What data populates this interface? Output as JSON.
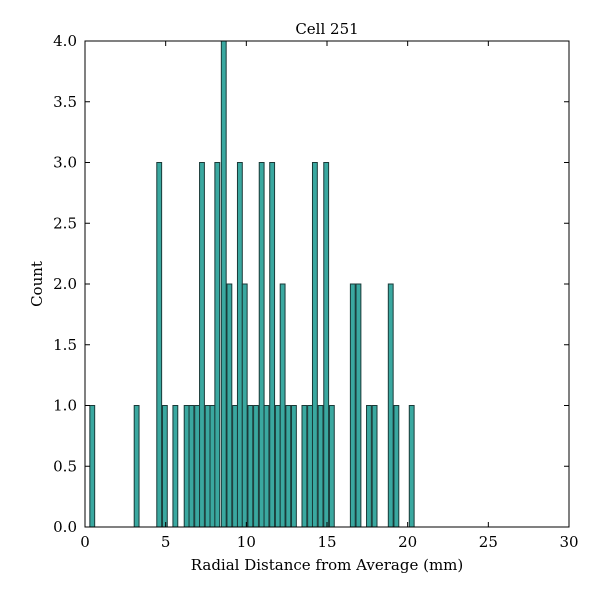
{
  "chart_data": {
    "type": "bar",
    "title": "Cell 251",
    "xlabel": "Radial Distance from Average (mm)",
    "ylabel": "Count",
    "xlim": [
      0,
      30
    ],
    "ylim": [
      0,
      4.0
    ],
    "xticks": [
      "0",
      "5",
      "10",
      "15",
      "20",
      "25",
      "30"
    ],
    "yticks": [
      "0.0",
      "0.5",
      "1.0",
      "1.5",
      "2.0",
      "2.5",
      "3.0",
      "3.5",
      "4.0"
    ],
    "grid": false,
    "legend": "none",
    "bar_color": "#3aa8a0",
    "bin_width": 0.3,
    "bars": [
      {
        "x": 0.45,
        "count": 1
      },
      {
        "x": 3.2,
        "count": 1
      },
      {
        "x": 4.6,
        "count": 3
      },
      {
        "x": 4.95,
        "count": 1
      },
      {
        "x": 5.6,
        "count": 1
      },
      {
        "x": 6.3,
        "count": 1
      },
      {
        "x": 6.6,
        "count": 1
      },
      {
        "x": 6.95,
        "count": 1
      },
      {
        "x": 7.25,
        "count": 3
      },
      {
        "x": 7.6,
        "count": 1
      },
      {
        "x": 7.9,
        "count": 1
      },
      {
        "x": 8.2,
        "count": 3
      },
      {
        "x": 8.6,
        "count": 4
      },
      {
        "x": 8.95,
        "count": 2
      },
      {
        "x": 9.3,
        "count": 1
      },
      {
        "x": 9.6,
        "count": 3
      },
      {
        "x": 9.9,
        "count": 2
      },
      {
        "x": 10.25,
        "count": 1
      },
      {
        "x": 10.6,
        "count": 1
      },
      {
        "x": 10.95,
        "count": 3
      },
      {
        "x": 11.25,
        "count": 1
      },
      {
        "x": 11.6,
        "count": 3
      },
      {
        "x": 11.95,
        "count": 1
      },
      {
        "x": 12.25,
        "count": 2
      },
      {
        "x": 12.6,
        "count": 1
      },
      {
        "x": 12.95,
        "count": 1
      },
      {
        "x": 13.6,
        "count": 1
      },
      {
        "x": 13.95,
        "count": 1
      },
      {
        "x": 14.25,
        "count": 3
      },
      {
        "x": 14.6,
        "count": 1
      },
      {
        "x": 14.95,
        "count": 3
      },
      {
        "x": 15.3,
        "count": 1
      },
      {
        "x": 16.6,
        "count": 2
      },
      {
        "x": 16.95,
        "count": 2
      },
      {
        "x": 17.6,
        "count": 1
      },
      {
        "x": 17.95,
        "count": 1
      },
      {
        "x": 18.95,
        "count": 2
      },
      {
        "x": 19.3,
        "count": 1
      },
      {
        "x": 20.25,
        "count": 1
      }
    ]
  }
}
